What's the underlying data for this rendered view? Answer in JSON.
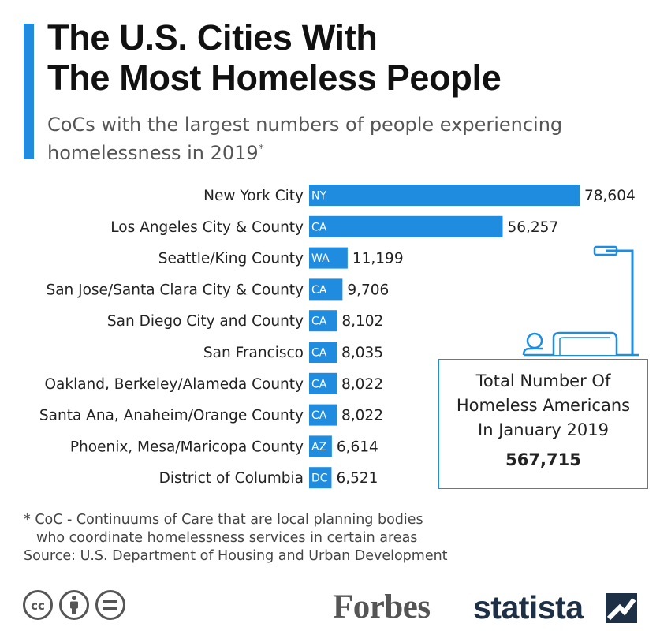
{
  "header": {
    "title_line1": "The U.S. Cities With",
    "title_line2": "The Most Homeless People",
    "subtitle_line1": "CoCs with the largest numbers of people experiencing",
    "subtitle_line2": "homelessness in 2019",
    "subtitle_mark": "*"
  },
  "chart_data": {
    "type": "bar",
    "orientation": "horizontal",
    "title": "The U.S. Cities With The Most Homeless People",
    "subtitle": "CoCs with the largest numbers of people experiencing homelessness in 2019*",
    "categories": [
      "New York City",
      "Los Angeles City & County",
      "Seattle/King County",
      "San Jose/Santa Clara City & County",
      "San Diego City and County",
      "San Francisco",
      "Oakland, Berkeley/Alameda County",
      "Santa Ana, Anaheim/Orange County",
      "Phoenix, Mesa/Maricopa County",
      "District of Columbia"
    ],
    "codes": [
      "NY",
      "CA",
      "WA",
      "CA",
      "CA",
      "CA",
      "CA",
      "CA",
      "AZ",
      "DC"
    ],
    "values": [
      78604,
      56257,
      11199,
      9706,
      8102,
      8035,
      8022,
      8022,
      6614,
      6521
    ],
    "value_labels": [
      "78,604",
      "56,257",
      "11,199",
      "9,706",
      "8,102",
      "8,035",
      "8,022",
      "8,022",
      "6,614",
      "6,521"
    ],
    "xlim": [
      0,
      78604
    ],
    "color": "#1f8ce0"
  },
  "total_box": {
    "line1": "Total Number Of",
    "line2": "Homeless Americans",
    "line3": "In January 2019",
    "value": "567,715"
  },
  "footnote": {
    "line1": "* CoC - Continuums of Care that are local planning bodies",
    "line2": "who coordinate homelessness services in certain areas",
    "source": "Source: U.S. Department of Housing and Urban Development"
  },
  "footer": {
    "cc_text": "cc",
    "forbes": "Forbes",
    "statista": "statista"
  },
  "colors": {
    "accent": "#1f8ce0",
    "text": "#222222",
    "subtitle": "#555555",
    "statista_navy": "#1e3045"
  }
}
